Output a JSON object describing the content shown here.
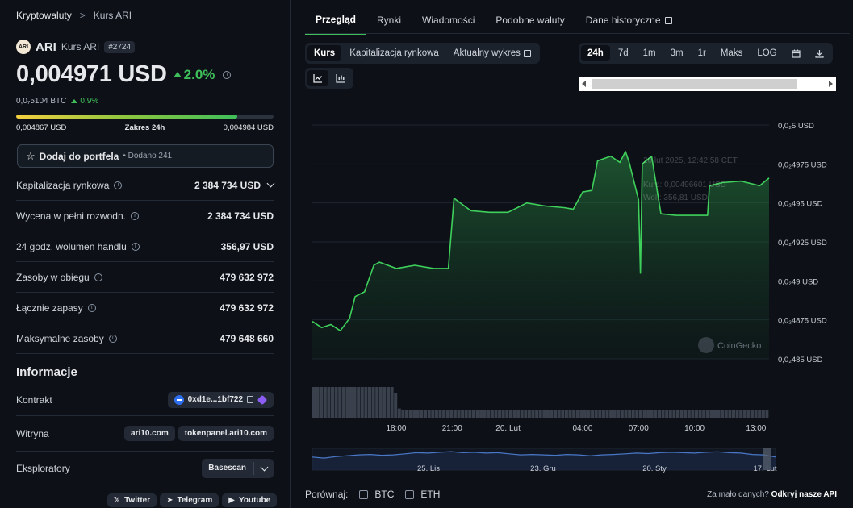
{
  "breadcrumb": {
    "root": "Kryptowaluty",
    "separator": ">",
    "current": "Kurs ARI"
  },
  "coin": {
    "logo_text": "ARI",
    "symbol": "ARI",
    "subtitle": "Kurs ARI",
    "rank": "#2724"
  },
  "price": {
    "usd": "0,004971 USD",
    "change_24h": "2.0%",
    "btc": "0,0₇5104 BTC",
    "btc_change": "0.9%"
  },
  "range": {
    "low": "0,004867 USD",
    "label": "Zakres 24h",
    "high": "0,004984 USD",
    "position_pct": 86
  },
  "portfolio": {
    "button_label": "Dodaj do portfela",
    "added": "• Dodano 241"
  },
  "stats": [
    {
      "label": "Kapitalizacja rynkowa",
      "value": "2 384 734 USD"
    },
    {
      "label": "Wycena w pełni rozwodn.",
      "value": "2 384 734 USD"
    },
    {
      "label": "24 godz. wolumen handlu",
      "value": "356,97 USD"
    },
    {
      "label": "Zasoby w obiegu",
      "value": "479 632 972"
    },
    {
      "label": "Łącznie zapasy",
      "value": "479 632 972"
    },
    {
      "label": "Maksymalne zasoby",
      "value": "479 648 660"
    }
  ],
  "info": {
    "title": "Informacje",
    "contract_label": "Kontrakt",
    "contract_value": "0xd1e...1bf722",
    "website_label": "Witryna",
    "websites": [
      "ari10.com",
      "tokenpanel.ari10.com"
    ],
    "explorers_label": "Eksploratory",
    "explorer_value": "Basescan",
    "socials": [
      "Twitter",
      "Telegram",
      "Youtube"
    ]
  },
  "tabs": [
    "Przegląd",
    "Rynki",
    "Wiadomości",
    "Podobne waluty",
    "Dane historyczne"
  ],
  "chart_modes": [
    "Kurs",
    "Kapitalizacja rynkowa",
    "Aktualny wykres"
  ],
  "ranges": [
    "24h",
    "7d",
    "1m",
    "3m",
    "1r",
    "Maks",
    "LOG"
  ],
  "compare": {
    "label": "Porównaj:",
    "options": [
      "BTC",
      "ETH"
    ]
  },
  "api_note": {
    "text": "Za mało danych?",
    "link": "Odkryj nasze API"
  },
  "watermark": "CoinGecko",
  "tooltip": {
    "date": "20 lut 2025, 12:42:58 CET",
    "price": "Kurs: 0,00496601 USD",
    "volume": "Wol.: 356,81 USD"
  },
  "colors": {
    "accent": "#3fbf5a",
    "background": "#0d1117"
  },
  "chart_data": {
    "type": "area",
    "title": "ARI price (USD), 24h",
    "x_ticks": [
      "18:00",
      "21:00",
      "20. Lut",
      "04:00",
      "07:00",
      "10:00",
      "13:00"
    ],
    "y_ticks": [
      "0,0₂5 USD",
      "0,0₂4975 USD",
      "0,0₂495 USD",
      "0,0₂4925 USD",
      "0,0₂49 USD",
      "0,0₂4875 USD",
      "0,0₂485 USD"
    ],
    "y_values_of_ticks": [
      0.005,
      0.004975,
      0.00495,
      0.004925,
      0.0049,
      0.004875,
      0.00485
    ],
    "ylim": [
      0.00485,
      0.005
    ],
    "x_range_hours": [
      0,
      24.5
    ],
    "series": [
      {
        "name": "Kurs",
        "points": [
          [
            0.0,
            0.004874
          ],
          [
            0.5,
            0.00487
          ],
          [
            1.0,
            0.004872
          ],
          [
            1.5,
            0.004868
          ],
          [
            2.0,
            0.004876
          ],
          [
            2.3,
            0.00489
          ],
          [
            2.8,
            0.004893
          ],
          [
            3.3,
            0.00491
          ],
          [
            3.6,
            0.004912
          ],
          [
            4.5,
            0.004908
          ],
          [
            5.5,
            0.00491
          ],
          [
            6.5,
            0.004908
          ],
          [
            7.3,
            0.004908
          ],
          [
            7.6,
            0.004953
          ],
          [
            8.5,
            0.004945
          ],
          [
            9.5,
            0.004944
          ],
          [
            10.5,
            0.004944
          ],
          [
            11.5,
            0.00495
          ],
          [
            12.5,
            0.004948
          ],
          [
            13.5,
            0.004947
          ],
          [
            14.0,
            0.004946
          ],
          [
            14.5,
            0.004957
          ],
          [
            15.0,
            0.004958
          ],
          [
            15.3,
            0.004977
          ],
          [
            16.0,
            0.00498
          ],
          [
            16.5,
            0.004976
          ],
          [
            16.8,
            0.004983
          ],
          [
            17.0,
            0.004976
          ],
          [
            17.5,
            0.004952
          ],
          [
            17.6,
            0.004905
          ],
          [
            17.7,
            0.004975
          ],
          [
            18.2,
            0.00498
          ],
          [
            18.7,
            0.004943
          ],
          [
            19.5,
            0.004942
          ],
          [
            20.5,
            0.004942
          ],
          [
            21.2,
            0.004942
          ],
          [
            21.3,
            0.004961
          ],
          [
            22.0,
            0.004963
          ],
          [
            23.0,
            0.004964
          ],
          [
            24.0,
            0.004961
          ],
          [
            24.5,
            0.004966
          ]
        ]
      }
    ],
    "volume_bars": [
      1,
      1,
      1,
      1,
      1,
      1,
      1,
      1,
      1,
      1,
      1,
      1,
      1,
      1,
      1,
      1,
      1,
      1,
      1,
      1,
      1,
      1,
      0.8,
      0.3,
      0.25,
      0.25,
      0.25,
      0.25,
      0.25,
      0.25,
      0.25,
      0.25,
      0.25,
      0.25,
      0.25,
      0.25,
      0.25,
      0.25,
      0.25,
      0.25,
      0.25,
      0.25,
      0.25,
      0.25,
      0.25,
      0.25,
      0.25,
      0.25,
      0.25,
      0.25,
      0.25,
      0.25,
      0.25,
      0.25,
      0.25,
      0.25,
      0.25,
      0.25,
      0.25,
      0.25,
      0.25,
      0.25,
      0.25,
      0.25,
      0.25,
      0.25,
      0.25,
      0.25,
      0.25,
      0.25,
      0.25,
      0.25,
      0.25,
      0.25,
      0.25,
      0.25,
      0.25,
      0.25,
      0.25,
      0.25,
      0.25,
      0.25,
      0.25,
      0.25,
      0.25,
      0.25,
      0.25,
      0.25,
      0.25,
      0.25,
      0.25,
      0.25,
      0.25,
      0.25,
      0.25,
      0.25,
      0.25,
      0.25,
      0.25,
      0.25,
      0.25,
      0.25,
      0.25,
      0.25,
      0.25,
      0.25,
      0.25,
      0.25,
      0.25,
      0.25,
      0.25,
      0.25,
      0.25,
      0.25,
      0.25,
      0.25,
      0.25,
      0.25,
      0.25,
      0.25,
      0.25,
      0.25,
      0.25
    ],
    "navigator_ticks": [
      "25. Lis",
      "23. Gru",
      "20. Sty",
      "17. Lut"
    ],
    "navigator_values": [
      0.6,
      0.55,
      0.62,
      0.66,
      0.7,
      0.72,
      0.68,
      0.7,
      0.75,
      0.8,
      0.78,
      0.82,
      0.85,
      0.8,
      0.82,
      0.78,
      0.8,
      0.75,
      0.7,
      0.72,
      0.7,
      0.68,
      0.72,
      0.7,
      0.66,
      0.7,
      0.72,
      0.75,
      0.78,
      0.76,
      0.8,
      0.82,
      0.8,
      0.78,
      0.82,
      0.84,
      0.8,
      0.78,
      0.72,
      0.7,
      0.6
    ]
  }
}
